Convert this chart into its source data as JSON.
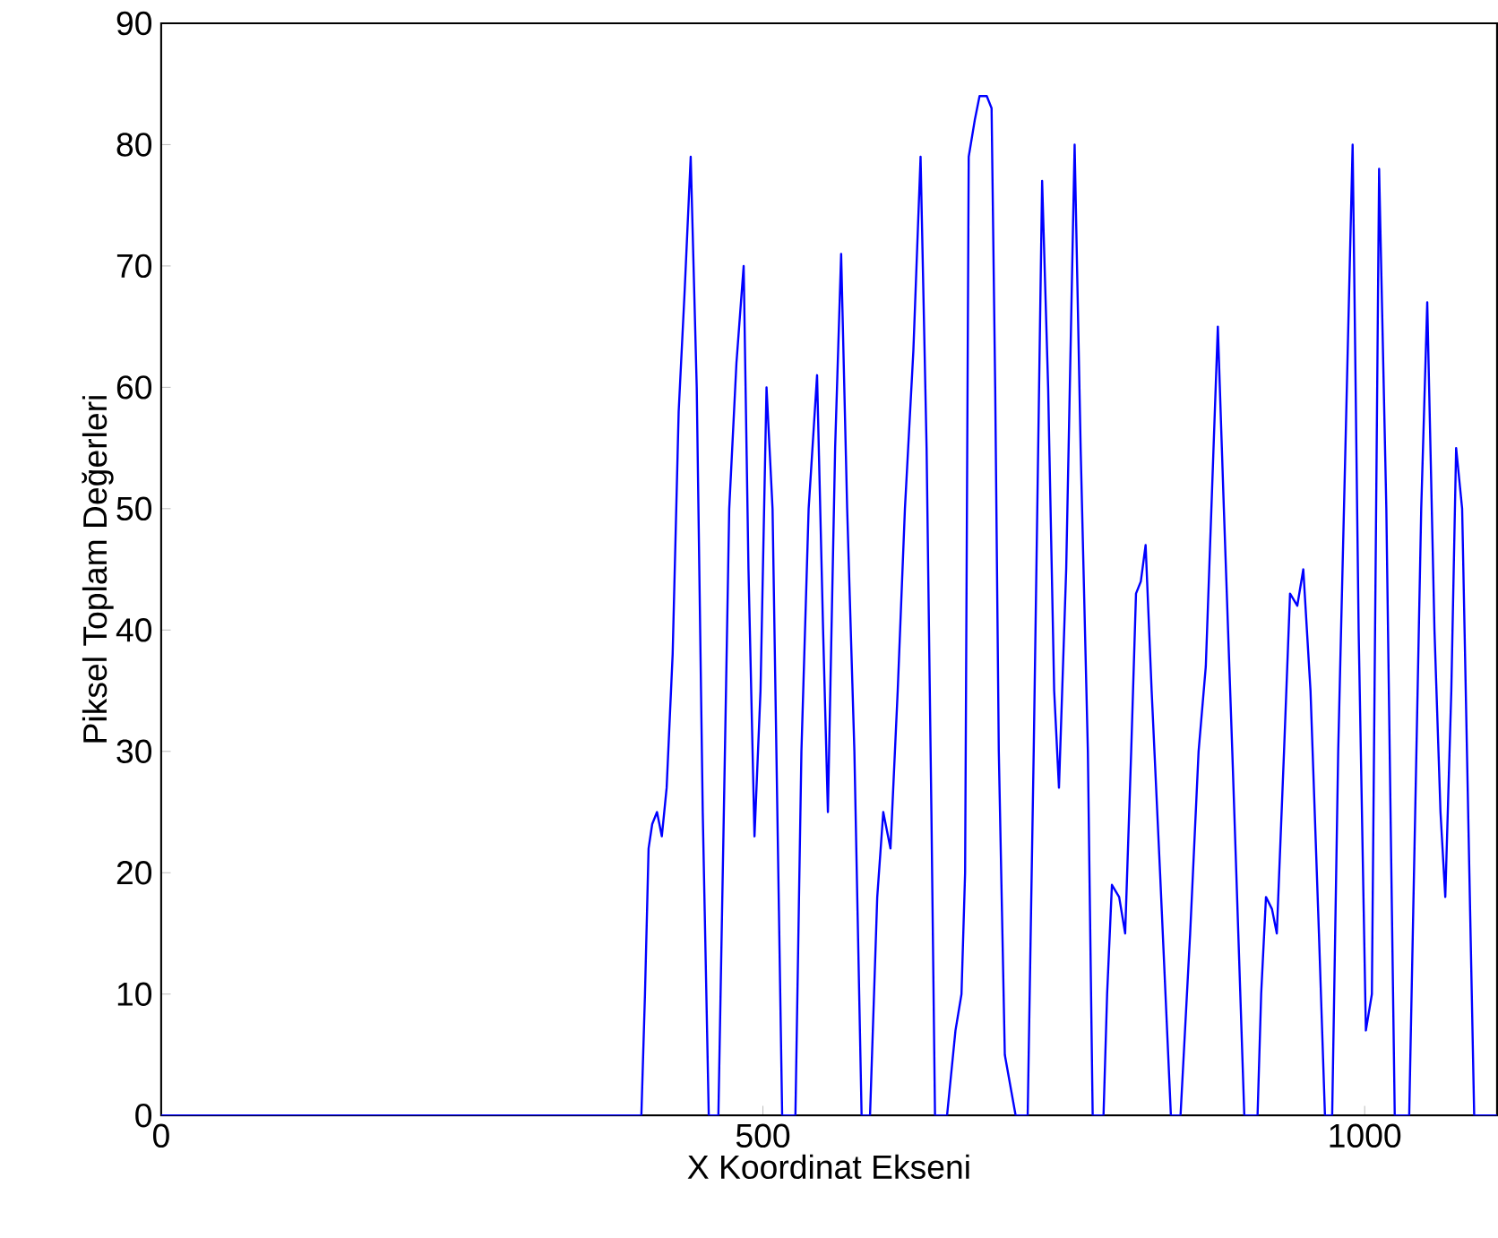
{
  "chart_data": {
    "type": "line",
    "xlabel": "X Koordinat Ekseni",
    "ylabel": "Piksel Toplam Değerleri",
    "color": "#0000ff",
    "x": [
      0,
      399,
      402,
      405,
      408,
      412,
      416,
      418,
      420,
      425,
      430,
      435,
      440,
      445,
      450,
      455,
      463,
      467,
      472,
      478,
      484,
      488,
      493,
      498,
      503,
      508,
      512,
      516,
      527,
      532,
      538,
      545,
      550,
      554,
      560,
      565,
      570,
      576,
      582,
      589,
      595,
      600,
      606,
      612,
      618,
      625,
      631,
      636,
      640,
      643,
      653,
      660,
      665,
      668,
      671,
      676,
      680,
      686,
      690,
      693,
      696,
      701,
      710,
      720,
      725,
      732,
      737,
      742,
      746,
      752,
      759,
      764,
      770,
      774,
      783,
      786,
      790,
      796,
      801,
      806,
      810,
      814,
      818,
      823,
      830,
      839,
      847,
      855,
      862,
      868,
      878,
      883,
      890,
      900,
      911,
      914,
      918,
      923,
      927,
      933,
      938,
      944,
      949,
      955,
      962,
      967,
      973,
      978,
      984,
      990,
      995,
      1001,
      1006,
      1012,
      1018,
      1025,
      1037,
      1042,
      1047,
      1052,
      1058,
      1063,
      1067,
      1072,
      1076,
      1081,
      1087,
      1091,
      1110
    ],
    "values": [
      0,
      0,
      10,
      22,
      24,
      25,
      23,
      25,
      27,
      38,
      58,
      68,
      79,
      60,
      25,
      0,
      0,
      22,
      50,
      62,
      70,
      45,
      23,
      35,
      60,
      50,
      25,
      0,
      0,
      30,
      50,
      61,
      40,
      25,
      55,
      71,
      50,
      30,
      0,
      0,
      18,
      25,
      22,
      35,
      50,
      63,
      79,
      55,
      25,
      0,
      0,
      7,
      10,
      20,
      79,
      82,
      84,
      84,
      83,
      60,
      30,
      5,
      0,
      0,
      30,
      77,
      60,
      35,
      27,
      45,
      80,
      55,
      30,
      0,
      0,
      10,
      19,
      18,
      15,
      30,
      43,
      44,
      47,
      35,
      20,
      0,
      0,
      15,
      30,
      37,
      65,
      50,
      30,
      0,
      0,
      10,
      18,
      17,
      15,
      30,
      43,
      42,
      45,
      35,
      15,
      0,
      0,
      30,
      55,
      80,
      40,
      7,
      10,
      78,
      50,
      0,
      0,
      25,
      50,
      67,
      40,
      25,
      18,
      35,
      55,
      50,
      20,
      0,
      0
    ],
    "xlim": [
      0,
      1110
    ],
    "ylim": [
      0,
      90
    ],
    "xticks": [
      0,
      500,
      1000
    ],
    "yticks": [
      0,
      10,
      20,
      30,
      40,
      50,
      60,
      70,
      80,
      90
    ]
  }
}
